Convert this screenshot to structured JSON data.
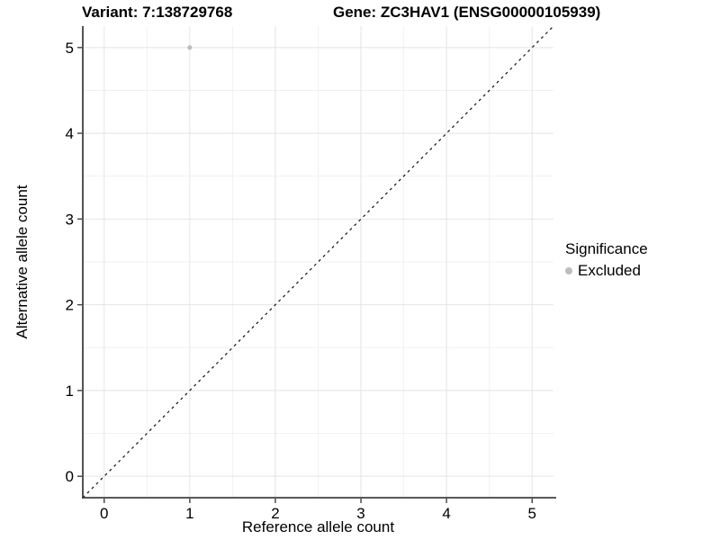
{
  "chart_data": {
    "type": "scatter",
    "title_left": "Variant: 7:138729768",
    "title_right": "Gene: ZC3HAV1 (ENSG00000105939)",
    "xlabel": "Reference allele count",
    "ylabel": "Alternative allele count",
    "xlim": [
      -0.25,
      5.25
    ],
    "ylim": [
      -0.25,
      5.25
    ],
    "xticks": [
      0,
      1,
      2,
      3,
      4,
      5
    ],
    "yticks": [
      0,
      1,
      2,
      3,
      4,
      5
    ],
    "minor_gridlines_at_halves": true,
    "grid": true,
    "points": [
      {
        "x": 1,
        "y": 5,
        "series": "Excluded"
      }
    ],
    "reference_line": {
      "type": "identity-diagonal",
      "from": [
        -0.25,
        -0.25
      ],
      "to": [
        5.25,
        5.25
      ],
      "style": "dashed",
      "color": "#111111"
    },
    "legend": {
      "title": "Significance",
      "position": "right",
      "entries": [
        {
          "label": "Excluded",
          "color": "#bdbdbd",
          "marker": "circle"
        }
      ]
    },
    "colors": {
      "point": "#bdbdbd",
      "grid_major": "#e4e4e4",
      "grid_minor": "#f1f1f1",
      "axis_line": "#404040",
      "tick_mark": "#404040",
      "tick_label": "#000000",
      "background": "#ffffff"
    }
  }
}
